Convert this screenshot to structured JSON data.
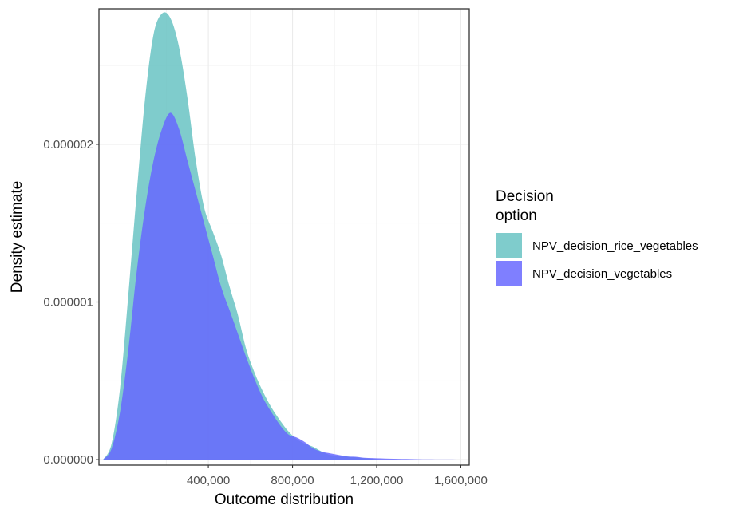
{
  "chart_data": {
    "type": "area",
    "title": "",
    "xlabel": "Outcome distribution",
    "ylabel": "Density estimate",
    "xlim": [
      -120000,
      1640000
    ],
    "ylim": [
      -3.5e-08,
      2.86e-06
    ],
    "x_ticks": [
      400000,
      800000,
      1200000,
      1600000
    ],
    "x_tick_labels": [
      "400,000",
      "800,000",
      "1,200,000",
      "1,600,000"
    ],
    "y_ticks": [
      0,
      1e-06,
      2e-06
    ],
    "y_tick_labels": [
      "0.000000",
      "0.000001",
      "0.000002"
    ],
    "grid": true,
    "legend_title": "Decision\noption",
    "legend_position": "right",
    "series": [
      {
        "name": "NPV_decision_rice_vegetables",
        "color": "#66C2C2",
        "x": [
          -100000,
          -60000,
          -20000,
          20000,
          60000,
          100000,
          140000,
          180000,
          220000,
          260000,
          300000,
          340000,
          380000,
          420000,
          460000,
          500000,
          540000,
          580000,
          620000,
          660000,
          700000,
          740000,
          780000,
          820000,
          860000,
          900000,
          940000,
          980000,
          1020000,
          1060000,
          1100000,
          1140000,
          1180000,
          1220000
        ],
        "values": [
          0,
          1e-07,
          4.5e-07,
          1.05e-06,
          1.7e-06,
          2.3e-06,
          2.7e-06,
          2.83e-06,
          2.8e-06,
          2.62e-06,
          2.3e-06,
          1.9e-06,
          1.6e-06,
          1.45e-06,
          1.3e-06,
          1.1e-06,
          9.2e-07,
          7e-07,
          5.5e-07,
          4.3e-07,
          3.3e-07,
          2.5e-07,
          1.8e-07,
          1.3e-07,
          1e-07,
          8e-08,
          5e-08,
          3e-08,
          2.5e-08,
          2e-08,
          1.5e-08,
          1e-08,
          5e-09,
          0
        ]
      },
      {
        "name": "NPV_decision_vegetables",
        "color": "#6666FF",
        "x": [
          -100000,
          -60000,
          -20000,
          20000,
          60000,
          100000,
          140000,
          180000,
          220000,
          260000,
          300000,
          340000,
          380000,
          420000,
          460000,
          500000,
          540000,
          580000,
          620000,
          660000,
          700000,
          740000,
          780000,
          820000,
          860000,
          900000,
          940000,
          980000,
          1020000,
          1060000,
          1100000,
          1140000,
          1180000,
          1220000,
          1260000,
          1300000,
          1340000,
          1380000,
          1420000,
          1460000,
          1500000,
          1540000,
          1580000,
          1620000
        ],
        "values": [
          0,
          7e-08,
          3e-07,
          7e-07,
          1.2e-06,
          1.6e-06,
          1.9e-06,
          2.1e-06,
          2.2e-06,
          2.1e-06,
          1.9e-06,
          1.7e-06,
          1.5e-06,
          1.3e-06,
          1.1e-06,
          9.5e-07,
          8e-07,
          6.5e-07,
          5.1e-07,
          3.9e-07,
          3e-07,
          2.2e-07,
          1.6e-07,
          1.4e-07,
          1.1e-07,
          7e-08,
          5e-08,
          4e-08,
          3e-08,
          2e-08,
          1.8e-08,
          1.2e-08,
          1e-08,
          8e-09,
          6e-09,
          5e-09,
          4e-09,
          3e-09,
          2e-09,
          2e-09,
          1e-09,
          1e-09,
          5e-10,
          0
        ]
      }
    ]
  }
}
